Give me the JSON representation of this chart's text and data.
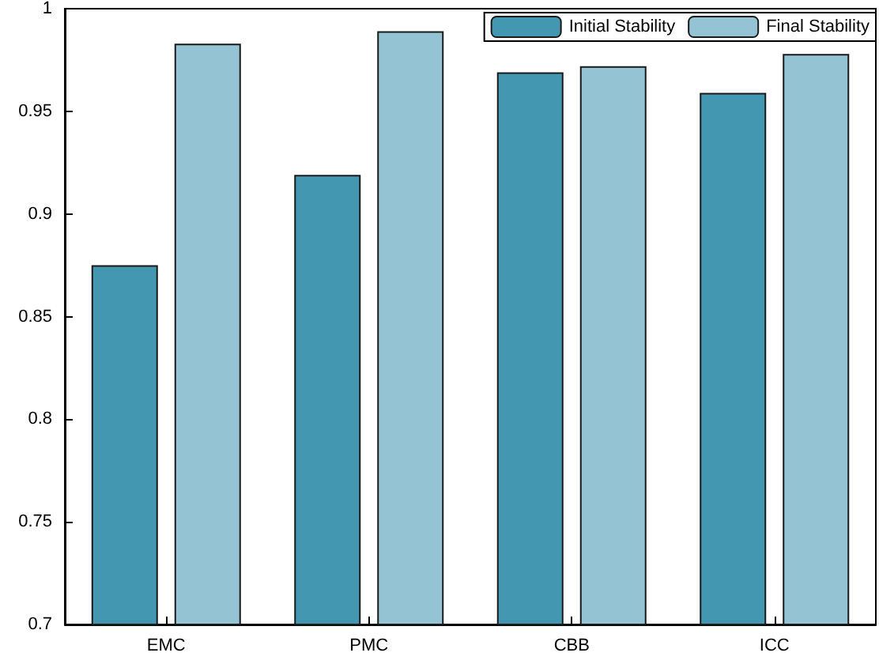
{
  "chart_data": {
    "type": "bar",
    "categories": [
      "EMC",
      "PMC",
      "CBB",
      "ICC"
    ],
    "series": [
      {
        "name": "Initial Stability",
        "color": "#4397b0",
        "values": [
          0.875,
          0.919,
          0.969,
          0.959
        ]
      },
      {
        "name": "Final Stability",
        "color": "#94c3d4",
        "values": [
          0.983,
          0.989,
          0.972,
          0.978
        ]
      }
    ],
    "ylim": [
      0.7,
      1
    ],
    "yticks": [
      0.7,
      0.75,
      0.8,
      0.85,
      0.9,
      0.95,
      1
    ],
    "grid": false,
    "legend": "top right"
  }
}
